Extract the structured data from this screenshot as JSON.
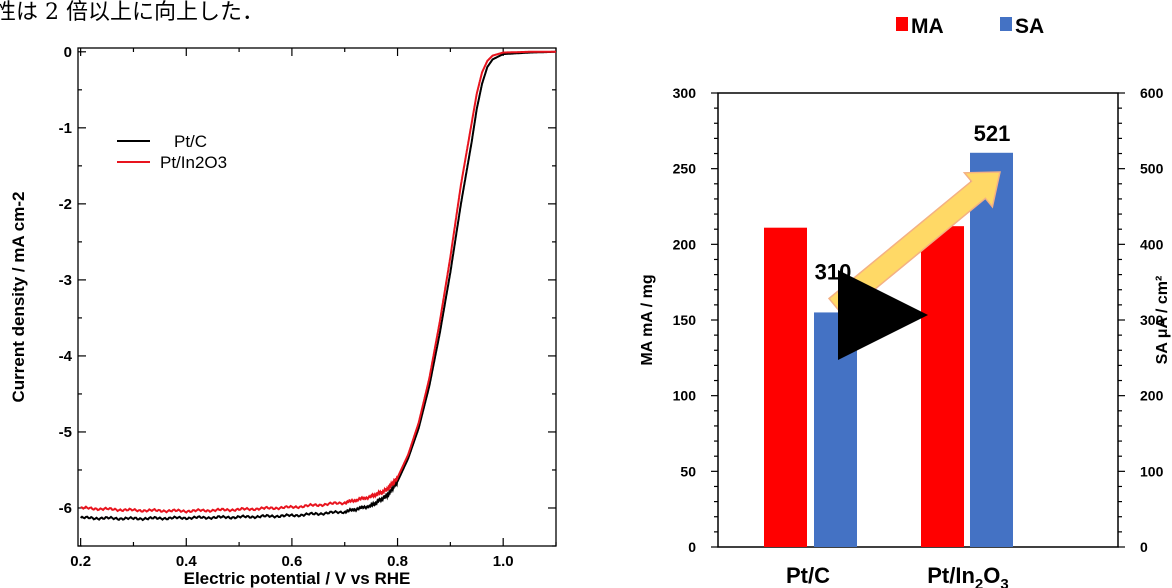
{
  "caption_fragment": "性は 2 倍以上に向上した．",
  "colors": {
    "ma": "#ff0000",
    "sa": "#4472c4",
    "pt_c_line": "#000000",
    "pt_in2o3_line": "#e8141e",
    "arrow_fill": "#ffd966",
    "arrow_stroke": "#f4b183"
  },
  "chart_data": [
    {
      "type": "line",
      "xlabel": "Electric potential / V vs RHE",
      "ylabel": "Current density / mA cm-2",
      "xlim": [
        0.195,
        1.1
      ],
      "ylim": [
        -6.5,
        0.05
      ],
      "x_ticks": [
        "0.2",
        "0.4",
        "0.6",
        "0.8",
        "1.0"
      ],
      "y_ticks": [
        "0",
        "-1",
        "-2",
        "-3",
        "-4",
        "-5",
        "-6"
      ],
      "legend_position": "upper-left",
      "series": [
        {
          "name": "Pt/C",
          "color": "#000000",
          "x": [
            0.2,
            0.3,
            0.4,
            0.5,
            0.6,
            0.7,
            0.75,
            0.78,
            0.8,
            0.82,
            0.84,
            0.86,
            0.88,
            0.9,
            0.92,
            0.94,
            0.95,
            0.96,
            0.97,
            0.98,
            1.0,
            1.05,
            1.1
          ],
          "y": [
            -6.13,
            -6.14,
            -6.13,
            -6.12,
            -6.1,
            -6.05,
            -5.97,
            -5.84,
            -5.65,
            -5.35,
            -4.95,
            -4.4,
            -3.7,
            -2.9,
            -2.0,
            -1.2,
            -0.75,
            -0.42,
            -0.2,
            -0.1,
            -0.03,
            -0.01,
            0
          ]
        },
        {
          "name": "Pt/In2O3",
          "color": "#e8141e",
          "x": [
            0.2,
            0.3,
            0.4,
            0.5,
            0.6,
            0.7,
            0.75,
            0.78,
            0.8,
            0.82,
            0.84,
            0.86,
            0.88,
            0.9,
            0.92,
            0.94,
            0.95,
            0.96,
            0.97,
            0.98,
            1.0,
            1.05,
            1.1
          ],
          "y": [
            -6.0,
            -6.03,
            -6.04,
            -6.02,
            -5.99,
            -5.93,
            -5.85,
            -5.76,
            -5.6,
            -5.3,
            -4.88,
            -4.3,
            -3.55,
            -2.7,
            -1.75,
            -0.95,
            -0.55,
            -0.27,
            -0.12,
            -0.05,
            -0.01,
            0,
            0
          ]
        }
      ]
    },
    {
      "type": "bar",
      "categories": [
        "Pt/C",
        "Pt/In2O3"
      ],
      "legend_position": "top",
      "legend": [
        "MA",
        "SA"
      ],
      "ylabel": "MA  mA / mg",
      "y2label": "SA  μA / cm²",
      "ylim": [
        0,
        300
      ],
      "y2lim": [
        0,
        600
      ],
      "y_ticks": [
        "0",
        "50",
        "100",
        "150",
        "200",
        "250",
        "300"
      ],
      "y2_ticks": [
        "0",
        "100",
        "200",
        "300",
        "400",
        "500",
        "600"
      ],
      "series": [
        {
          "name": "MA",
          "axis": "left",
          "color": "#ff0000",
          "values": [
            211,
            212
          ]
        },
        {
          "name": "SA",
          "axis": "right",
          "color": "#4472c4",
          "values": [
            310,
            521
          ]
        }
      ],
      "data_labels": [
        "310",
        "521"
      ]
    }
  ]
}
